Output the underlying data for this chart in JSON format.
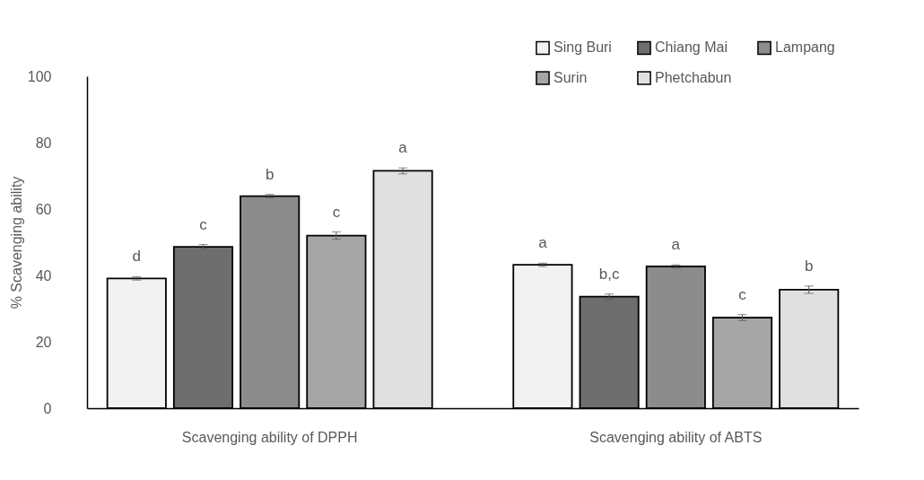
{
  "chart_data": {
    "type": "bar",
    "ylabel": "% Scavenging ability",
    "categories": [
      "Scavenging ability of DPPH",
      "Scavenging ability of ABTS"
    ],
    "ylim": [
      0,
      100
    ],
    "yticks": [
      0,
      20,
      40,
      60,
      80,
      100
    ],
    "grid": false,
    "legend": "top right",
    "series": [
      {
        "name": "Sing Buri",
        "color": "#f2f2f2",
        "values": [
          39.1,
          43.2
        ],
        "errors": [
          0.5,
          0.5
        ],
        "value_labels": [
          "d",
          "a"
        ]
      },
      {
        "name": "Chiang Mai",
        "color": "#6e6e6e",
        "values": [
          48.6,
          33.6
        ],
        "errors": [
          0.7,
          0.8
        ],
        "value_labels": [
          "c",
          "b,c"
        ]
      },
      {
        "name": "Lampang",
        "color": "#8c8c8c",
        "values": [
          63.9,
          42.7
        ],
        "errors": [
          0.5,
          0.5
        ],
        "value_labels": [
          "b",
          "a"
        ]
      },
      {
        "name": "Surin",
        "color": "#a6a6a6",
        "values": [
          52.0,
          27.3
        ],
        "errors": [
          1.1,
          0.9
        ],
        "value_labels": [
          "c",
          "c"
        ]
      },
      {
        "name": "Phetchabun",
        "color": "#e0e0e0",
        "values": [
          71.5,
          35.7
        ],
        "errors": [
          0.9,
          1.1
        ],
        "value_labels": [
          "a",
          "b"
        ]
      }
    ]
  }
}
